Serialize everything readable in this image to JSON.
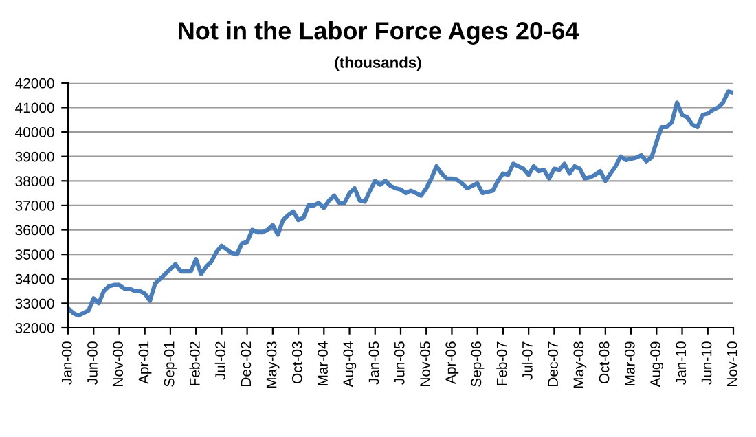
{
  "chart_data": {
    "type": "line",
    "title": "Not in the Labor Force Ages 20-64",
    "subtitle": "(thousands)",
    "categories": [
      "Jan-00",
      null,
      null,
      null,
      null,
      "Jun-00",
      null,
      null,
      null,
      null,
      "Nov-00",
      null,
      null,
      null,
      null,
      "Apr-01",
      null,
      null,
      null,
      null,
      "Sep-01",
      null,
      null,
      null,
      null,
      "Feb-02",
      null,
      null,
      null,
      null,
      "Jul-02",
      null,
      null,
      null,
      null,
      "Dec-02",
      null,
      null,
      null,
      null,
      "May-03",
      null,
      null,
      null,
      null,
      "Oct-03",
      null,
      null,
      null,
      null,
      "Mar-04",
      null,
      null,
      null,
      null,
      "Aug-04",
      null,
      null,
      null,
      null,
      "Jan-05",
      null,
      null,
      null,
      null,
      "Jun-05",
      null,
      null,
      null,
      null,
      "Nov-05",
      null,
      null,
      null,
      null,
      "Apr-06",
      null,
      null,
      null,
      null,
      "Sep-06",
      null,
      null,
      null,
      null,
      "Feb-07",
      null,
      null,
      null,
      null,
      "Jul-07",
      null,
      null,
      null,
      null,
      "Dec-07",
      null,
      null,
      null,
      null,
      "May-08",
      null,
      null,
      null,
      null,
      "Oct-08",
      null,
      null,
      null,
      null,
      "Mar-09",
      null,
      null,
      null,
      null,
      "Aug-09",
      null,
      null,
      null,
      null,
      "Jan-10",
      null,
      null,
      null,
      null,
      "Jun-10",
      null,
      null,
      null,
      null,
      "Nov-10"
    ],
    "series": [
      {
        "color": "#4a7ebb",
        "values": [
          32800,
          32600,
          32500,
          32600,
          32700,
          33200,
          33000,
          33500,
          33700,
          33750,
          33750,
          33600,
          33600,
          33500,
          33500,
          33400,
          33100,
          33800,
          34000,
          34200,
          34400,
          34600,
          34300,
          34300,
          34300,
          34800,
          34200,
          34500,
          34700,
          35100,
          35350,
          35200,
          35050,
          35000,
          35450,
          35500,
          36000,
          35900,
          35900,
          36000,
          36200,
          35800,
          36400,
          36600,
          36750,
          36400,
          36500,
          37000,
          37000,
          37100,
          36900,
          37200,
          37400,
          37100,
          37100,
          37500,
          37700,
          37200,
          37150,
          37600,
          38000,
          37850,
          38000,
          37800,
          37700,
          37650,
          37500,
          37600,
          37500,
          37400,
          37700,
          38100,
          38600,
          38300,
          38100,
          38100,
          38050,
          37900,
          37700,
          37800,
          37900,
          37500,
          37550,
          37600,
          38000,
          38300,
          38250,
          38700,
          38600,
          38500,
          38250,
          38600,
          38400,
          38450,
          38100,
          38500,
          38450,
          38700,
          38300,
          38600,
          38500,
          38100,
          38150,
          38250,
          38400,
          38000,
          38300,
          38600,
          39000,
          38850,
          38900,
          38950,
          39050,
          38800,
          38950,
          39600,
          40200,
          40200,
          40400,
          41200,
          40700,
          40600,
          40300,
          40200,
          40700,
          40750,
          40900,
          41000,
          41200,
          41650,
          41600
        ]
      }
    ],
    "ylim": [
      32000,
      42000
    ],
    "yticks": [
      32000,
      33000,
      34000,
      35000,
      36000,
      37000,
      38000,
      39000,
      40000,
      41000,
      42000
    ],
    "grid": "y",
    "legend": false,
    "marker": "none",
    "line_style": "solid"
  }
}
